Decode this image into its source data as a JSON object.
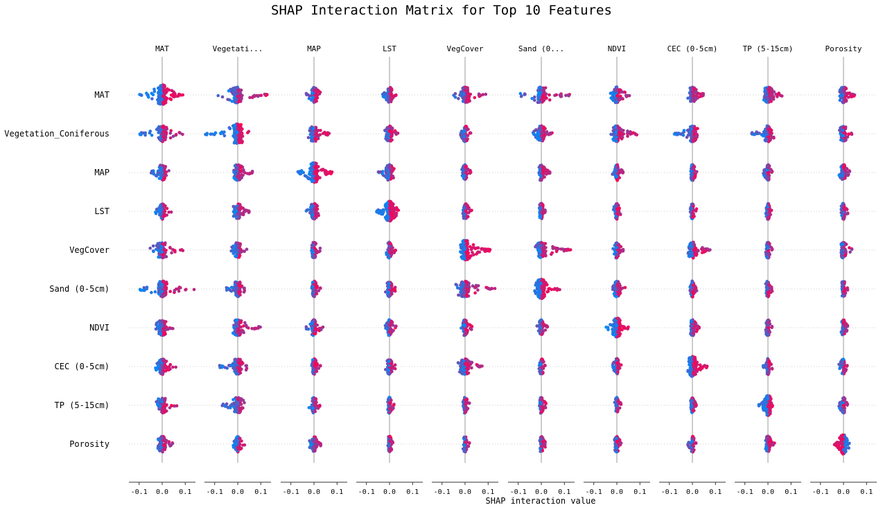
{
  "chart_data": {
    "type": "scatter",
    "subtype": "shap-interaction-beeswarm-matrix",
    "title": "SHAP Interaction Matrix for Top 10 Features",
    "xlabel": "SHAP interaction value",
    "features": [
      "MAT",
      "Vegetation_Coniferous",
      "MAP",
      "LST",
      "VegCover",
      "Sand (0-5cm)",
      "NDVI",
      "CEC (0-5cm)",
      "TP (5-15cm)",
      "Porosity"
    ],
    "column_labels": [
      "MAT",
      "Vegetati...",
      "MAP",
      "LST",
      "VegCover",
      "Sand (0...",
      "NDVI",
      "CEC (0-5cm)",
      "TP (5-15cm)",
      "Porosity"
    ],
    "x_ticks": [
      "-0.1",
      "0.0",
      "0.1"
    ],
    "xlim": [
      -0.14,
      0.14
    ],
    "colors": {
      "low": "#008afb",
      "high": "#ff0052",
      "axis": "#999999",
      "grid": "#cccccc"
    },
    "cells": [
      [
        [
          -0.1,
          0.09
        ],
        [
          -0.12,
          0.13
        ],
        [
          -0.04,
          0.03
        ],
        [
          -0.03,
          0.03
        ],
        [
          -0.05,
          0.09
        ],
        [
          -0.1,
          0.13
        ],
        [
          -0.03,
          0.06
        ],
        [
          -0.02,
          0.05
        ],
        [
          -0.02,
          0.07
        ],
        [
          -0.02,
          0.05
        ]
      ],
      [
        [
          -0.1,
          0.09
        ],
        [
          -0.14,
          0.05
        ],
        [
          -0.03,
          0.07
        ],
        [
          -0.02,
          0.04
        ],
        [
          -0.02,
          0.03
        ],
        [
          -0.04,
          0.05
        ],
        [
          -0.03,
          0.1
        ],
        [
          -0.08,
          0.03
        ],
        [
          -0.07,
          0.03
        ],
        [
          -0.02,
          0.04
        ]
      ],
      [
        [
          -0.05,
          0.03
        ],
        [
          -0.03,
          0.07
        ],
        [
          -0.07,
          0.08
        ],
        [
          -0.05,
          0.02
        ],
        [
          -0.02,
          0.03
        ],
        [
          -0.01,
          0.04
        ],
        [
          -0.02,
          0.03
        ],
        [
          -0.01,
          0.02
        ],
        [
          -0.02,
          0.02
        ],
        [
          -0.02,
          0.03
        ]
      ],
      [
        [
          -0.03,
          0.04
        ],
        [
          -0.02,
          0.05
        ],
        [
          -0.05,
          0.03
        ],
        [
          -0.06,
          0.04
        ],
        [
          -0.01,
          0.03
        ],
        [
          -0.01,
          0.02
        ],
        [
          -0.02,
          0.02
        ],
        [
          -0.01,
          0.02
        ],
        [
          -0.01,
          0.02
        ],
        [
          -0.01,
          0.02
        ]
      ],
      [
        [
          -0.06,
          0.1
        ],
        [
          -0.03,
          0.04
        ],
        [
          -0.02,
          0.03
        ],
        [
          -0.02,
          0.03
        ],
        [
          -0.02,
          0.11
        ],
        [
          -0.03,
          0.14
        ],
        [
          -0.02,
          0.03
        ],
        [
          -0.02,
          0.08
        ],
        [
          -0.01,
          0.02
        ],
        [
          -0.01,
          0.04
        ]
      ],
      [
        [
          -0.1,
          0.14
        ],
        [
          -0.05,
          0.03
        ],
        [
          -0.02,
          0.03
        ],
        [
          -0.02,
          0.03
        ],
        [
          -0.04,
          0.14
        ],
        [
          -0.03,
          0.08
        ],
        [
          -0.02,
          0.04
        ],
        [
          -0.01,
          0.02
        ],
        [
          -0.01,
          0.02
        ],
        [
          -0.01,
          0.02
        ]
      ],
      [
        [
          -0.03,
          0.06
        ],
        [
          -0.04,
          0.1
        ],
        [
          -0.04,
          0.04
        ],
        [
          -0.02,
          0.03
        ],
        [
          -0.02,
          0.03
        ],
        [
          -0.02,
          0.03
        ],
        [
          -0.05,
          0.05
        ],
        [
          -0.01,
          0.03
        ],
        [
          -0.01,
          0.02
        ],
        [
          -0.01,
          0.02
        ]
      ],
      [
        [
          -0.03,
          0.06
        ],
        [
          -0.08,
          0.04
        ],
        [
          -0.02,
          0.03
        ],
        [
          -0.02,
          0.03
        ],
        [
          -0.03,
          0.08
        ],
        [
          -0.01,
          0.02
        ],
        [
          -0.02,
          0.02
        ],
        [
          -0.02,
          0.07
        ],
        [
          -0.02,
          0.02
        ],
        [
          -0.02,
          0.02
        ]
      ],
      [
        [
          -0.03,
          0.07
        ],
        [
          -0.07,
          0.03
        ],
        [
          -0.03,
          0.03
        ],
        [
          -0.01,
          0.02
        ],
        [
          -0.01,
          0.02
        ],
        [
          -0.01,
          0.02
        ],
        [
          -0.01,
          0.02
        ],
        [
          -0.01,
          0.02
        ],
        [
          -0.04,
          0.02
        ],
        [
          -0.02,
          0.02
        ]
      ],
      [
        [
          -0.02,
          0.05
        ],
        [
          -0.02,
          0.03
        ],
        [
          -0.02,
          0.03
        ],
        [
          -0.01,
          0.02
        ],
        [
          -0.01,
          0.02
        ],
        [
          -0.01,
          0.02
        ],
        [
          -0.01,
          0.02
        ],
        [
          -0.02,
          0.02
        ],
        [
          -0.01,
          0.03
        ],
        [
          -0.04,
          0.03
        ]
      ]
    ]
  }
}
